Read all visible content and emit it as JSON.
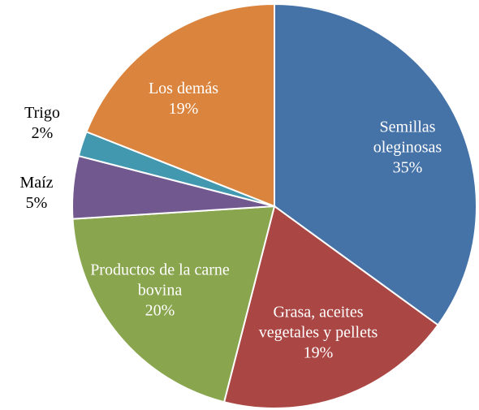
{
  "chart_data": {
    "type": "pie",
    "categories": [
      "Semillas oleginosas",
      "Grasa, aceites vegetales y pellets",
      "Productos de la carne bovina",
      "Maíz",
      "Trigo",
      "Los demás"
    ],
    "values": [
      35,
      19,
      20,
      5,
      2,
      19
    ],
    "value_labels": [
      "35%",
      "19%",
      "20%",
      "5%",
      "2%",
      "19%"
    ],
    "colors": [
      "#4572a7",
      "#aa4643",
      "#89a54e",
      "#71588f",
      "#4198af",
      "#db843d"
    ]
  }
}
